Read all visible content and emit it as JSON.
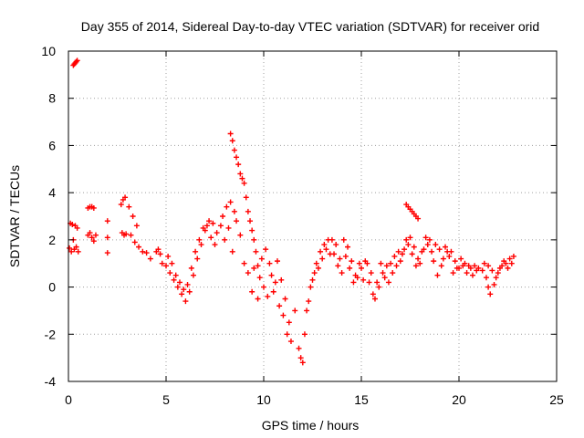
{
  "chart_data": {
    "type": "scatter",
    "title": "Day 355 of 2014, Sidereal Day-to-day VTEC variation (SDTVAR) for receiver orid",
    "xlabel": "GPS time / hours",
    "ylabel": "SDTVAR / TECUs",
    "xlim": [
      0,
      25
    ],
    "ylim": [
      -4,
      10
    ],
    "xticks": [
      0,
      5,
      10,
      15,
      20,
      25
    ],
    "yticks": [
      -4,
      -2,
      0,
      2,
      4,
      6,
      8,
      10
    ],
    "xtick_labels": [
      "0",
      "5",
      "10",
      "15",
      "20",
      "25"
    ],
    "ytick_labels": [
      "-4",
      "-2",
      "0",
      "2",
      "4",
      "6",
      "8",
      "10"
    ],
    "grid": true,
    "marker": "+",
    "color": "#ff0000",
    "series": [
      {
        "name": "SDTVAR",
        "points": [
          [
            0.05,
            1.65
          ],
          [
            0.1,
            2.7
          ],
          [
            0.15,
            1.5
          ],
          [
            0.2,
            2.65
          ],
          [
            0.25,
            2.0
          ],
          [
            0.3,
            1.6
          ],
          [
            0.35,
            2.6
          ],
          [
            0.4,
            1.7
          ],
          [
            0.45,
            2.5
          ],
          [
            0.5,
            1.5
          ],
          [
            0.25,
            9.4
          ],
          [
            0.3,
            9.45
          ],
          [
            0.35,
            9.5
          ],
          [
            0.4,
            9.55
          ],
          [
            0.45,
            9.6
          ],
          [
            1.0,
            3.35
          ],
          [
            1.1,
            3.4
          ],
          [
            1.2,
            3.4
          ],
          [
            1.3,
            3.35
          ],
          [
            1.0,
            2.2
          ],
          [
            1.1,
            2.3
          ],
          [
            1.2,
            2.1
          ],
          [
            1.3,
            1.95
          ],
          [
            1.4,
            2.2
          ],
          [
            2.0,
            2.8
          ],
          [
            2.0,
            2.1
          ],
          [
            2.0,
            1.45
          ],
          [
            2.7,
            3.5
          ],
          [
            2.8,
            3.7
          ],
          [
            2.9,
            3.8
          ],
          [
            2.75,
            2.3
          ],
          [
            2.85,
            2.2
          ],
          [
            2.95,
            2.25
          ],
          [
            3.1,
            3.4
          ],
          [
            3.3,
            3.0
          ],
          [
            3.5,
            2.6
          ],
          [
            3.2,
            2.2
          ],
          [
            3.4,
            1.9
          ],
          [
            3.6,
            1.7
          ],
          [
            3.8,
            1.5
          ],
          [
            4.0,
            1.45
          ],
          [
            4.2,
            1.2
          ],
          [
            4.5,
            1.5
          ],
          [
            4.6,
            1.6
          ],
          [
            4.7,
            1.4
          ],
          [
            4.8,
            1.0
          ],
          [
            5.0,
            0.9
          ],
          [
            5.2,
            0.6
          ],
          [
            5.4,
            0.3
          ],
          [
            5.6,
            0.0
          ],
          [
            5.8,
            -0.3
          ],
          [
            6.0,
            -0.6
          ],
          [
            6.2,
            -0.2
          ],
          [
            6.4,
            0.5
          ],
          [
            6.6,
            1.2
          ],
          [
            6.8,
            1.8
          ],
          [
            7.0,
            2.4
          ],
          [
            7.2,
            2.8
          ],
          [
            7.4,
            2.7
          ],
          [
            7.6,
            2.3
          ],
          [
            7.8,
            2.6
          ],
          [
            5.1,
            1.3
          ],
          [
            5.3,
            1.0
          ],
          [
            5.5,
            0.5
          ],
          [
            5.7,
            0.2
          ],
          [
            5.9,
            -0.1
          ],
          [
            6.1,
            0.1
          ],
          [
            6.3,
            0.8
          ],
          [
            6.5,
            1.5
          ],
          [
            6.7,
            2.0
          ],
          [
            6.9,
            2.5
          ],
          [
            7.1,
            2.6
          ],
          [
            7.3,
            2.1
          ],
          [
            7.5,
            1.8
          ],
          [
            7.9,
            3.0
          ],
          [
            8.1,
            3.4
          ],
          [
            8.3,
            3.6
          ],
          [
            8.5,
            3.2
          ],
          [
            8.0,
            2.0
          ],
          [
            8.2,
            2.5
          ],
          [
            8.4,
            1.5
          ],
          [
            8.6,
            2.8
          ],
          [
            8.8,
            2.2
          ],
          [
            9.0,
            1.0
          ],
          [
            9.2,
            0.6
          ],
          [
            9.4,
            -0.2
          ],
          [
            8.3,
            6.5
          ],
          [
            8.4,
            6.2
          ],
          [
            8.5,
            5.8
          ],
          [
            8.6,
            5.5
          ],
          [
            8.7,
            5.2
          ],
          [
            8.8,
            4.8
          ],
          [
            8.9,
            4.6
          ],
          [
            9.0,
            4.4
          ],
          [
            9.1,
            3.8
          ],
          [
            9.2,
            3.2
          ],
          [
            9.3,
            2.8
          ],
          [
            9.4,
            2.4
          ],
          [
            9.5,
            2.0
          ],
          [
            9.6,
            1.5
          ],
          [
            9.7,
            0.9
          ],
          [
            9.8,
            0.4
          ],
          [
            10.0,
            0.0
          ],
          [
            10.2,
            -0.4
          ],
          [
            10.4,
            0.5
          ],
          [
            10.6,
            0.2
          ],
          [
            10.8,
            -0.8
          ],
          [
            11.0,
            -1.2
          ],
          [
            11.2,
            -2.0
          ],
          [
            11.4,
            -2.3
          ],
          [
            11.6,
            -1.0
          ],
          [
            9.5,
            0.8
          ],
          [
            9.7,
            -0.5
          ],
          [
            9.9,
            1.2
          ],
          [
            10.1,
            1.6
          ],
          [
            10.3,
            1.0
          ],
          [
            10.5,
            -0.2
          ],
          [
            10.7,
            1.1
          ],
          [
            10.9,
            0.3
          ],
          [
            11.1,
            -0.5
          ],
          [
            11.3,
            -1.5
          ],
          [
            11.8,
            -2.6
          ],
          [
            11.9,
            -3.0
          ],
          [
            12.0,
            -3.2
          ],
          [
            12.1,
            -2.0
          ],
          [
            12.2,
            -1.0
          ],
          [
            12.4,
            0.0
          ],
          [
            12.6,
            0.6
          ],
          [
            12.8,
            0.8
          ],
          [
            13.0,
            1.2
          ],
          [
            13.2,
            1.6
          ],
          [
            13.4,
            1.4
          ],
          [
            12.3,
            -0.6
          ],
          [
            12.5,
            0.3
          ],
          [
            12.7,
            1.0
          ],
          [
            12.9,
            1.5
          ],
          [
            13.1,
            1.8
          ],
          [
            13.3,
            2.0
          ],
          [
            13.5,
            2.0
          ],
          [
            13.7,
            1.8
          ],
          [
            13.9,
            1.2
          ],
          [
            14.1,
            2.0
          ],
          [
            14.3,
            1.7
          ],
          [
            14.5,
            1.1
          ],
          [
            14.7,
            0.5
          ],
          [
            14.9,
            1.0
          ],
          [
            15.1,
            0.3
          ],
          [
            15.3,
            1.0
          ],
          [
            15.5,
            0.6
          ],
          [
            15.7,
            -0.5
          ],
          [
            15.9,
            0.0
          ],
          [
            16.1,
            0.6
          ],
          [
            16.3,
            0.9
          ],
          [
            13.6,
            1.4
          ],
          [
            13.8,
            0.9
          ],
          [
            14.0,
            0.6
          ],
          [
            14.2,
            1.3
          ],
          [
            14.4,
            0.8
          ],
          [
            14.6,
            0.2
          ],
          [
            14.8,
            0.4
          ],
          [
            15.0,
            0.8
          ],
          [
            15.2,
            1.1
          ],
          [
            15.4,
            0.2
          ],
          [
            15.6,
            -0.3
          ],
          [
            15.8,
            0.2
          ],
          [
            16.0,
            1.0
          ],
          [
            16.2,
            0.4
          ],
          [
            16.4,
            0.2
          ],
          [
            16.5,
            1.0
          ],
          [
            16.7,
            1.3
          ],
          [
            16.9,
            1.5
          ],
          [
            17.1,
            1.4
          ],
          [
            17.3,
            2.0
          ],
          [
            17.5,
            2.1
          ],
          [
            17.7,
            1.7
          ],
          [
            17.9,
            1.2
          ],
          [
            18.1,
            1.5
          ],
          [
            18.3,
            2.1
          ],
          [
            18.5,
            2.0
          ],
          [
            16.6,
            0.6
          ],
          [
            16.8,
            0.9
          ],
          [
            17.0,
            1.1
          ],
          [
            17.2,
            1.6
          ],
          [
            17.4,
            1.8
          ],
          [
            17.6,
            1.4
          ],
          [
            17.8,
            0.9
          ],
          [
            18.0,
            1.0
          ],
          [
            18.2,
            1.6
          ],
          [
            18.4,
            1.8
          ],
          [
            17.3,
            3.5
          ],
          [
            17.4,
            3.4
          ],
          [
            17.5,
            3.3
          ],
          [
            17.6,
            3.2
          ],
          [
            17.7,
            3.1
          ],
          [
            17.8,
            3.0
          ],
          [
            17.9,
            2.9
          ],
          [
            18.6,
            1.5
          ],
          [
            18.8,
            1.8
          ],
          [
            19.0,
            1.6
          ],
          [
            19.2,
            1.2
          ],
          [
            19.4,
            1.5
          ],
          [
            19.6,
            1.5
          ],
          [
            19.8,
            1.1
          ],
          [
            20.0,
            0.8
          ],
          [
            20.2,
            0.9
          ],
          [
            20.4,
            0.6
          ],
          [
            20.6,
            0.8
          ],
          [
            20.8,
            0.9
          ],
          [
            21.0,
            0.8
          ],
          [
            18.7,
            1.1
          ],
          [
            18.9,
            0.5
          ],
          [
            19.1,
            0.9
          ],
          [
            19.3,
            1.7
          ],
          [
            19.5,
            1.3
          ],
          [
            19.7,
            0.6
          ],
          [
            19.9,
            0.8
          ],
          [
            20.1,
            1.2
          ],
          [
            20.3,
            1.0
          ],
          [
            20.5,
            0.9
          ],
          [
            20.7,
            0.5
          ],
          [
            20.9,
            0.7
          ],
          [
            21.2,
            0.7
          ],
          [
            21.4,
            0.4
          ],
          [
            21.5,
            0.0
          ],
          [
            21.6,
            -0.3
          ],
          [
            21.8,
            0.1
          ],
          [
            22.0,
            0.6
          ],
          [
            22.2,
            0.9
          ],
          [
            22.4,
            1.0
          ],
          [
            22.6,
            1.2
          ],
          [
            22.8,
            1.3
          ],
          [
            21.3,
            1.0
          ],
          [
            21.5,
            0.9
          ],
          [
            21.7,
            0.7
          ],
          [
            21.9,
            0.4
          ],
          [
            22.1,
            0.8
          ],
          [
            22.3,
            1.1
          ],
          [
            22.5,
            0.8
          ],
          [
            22.7,
            1.0
          ]
        ]
      }
    ]
  }
}
